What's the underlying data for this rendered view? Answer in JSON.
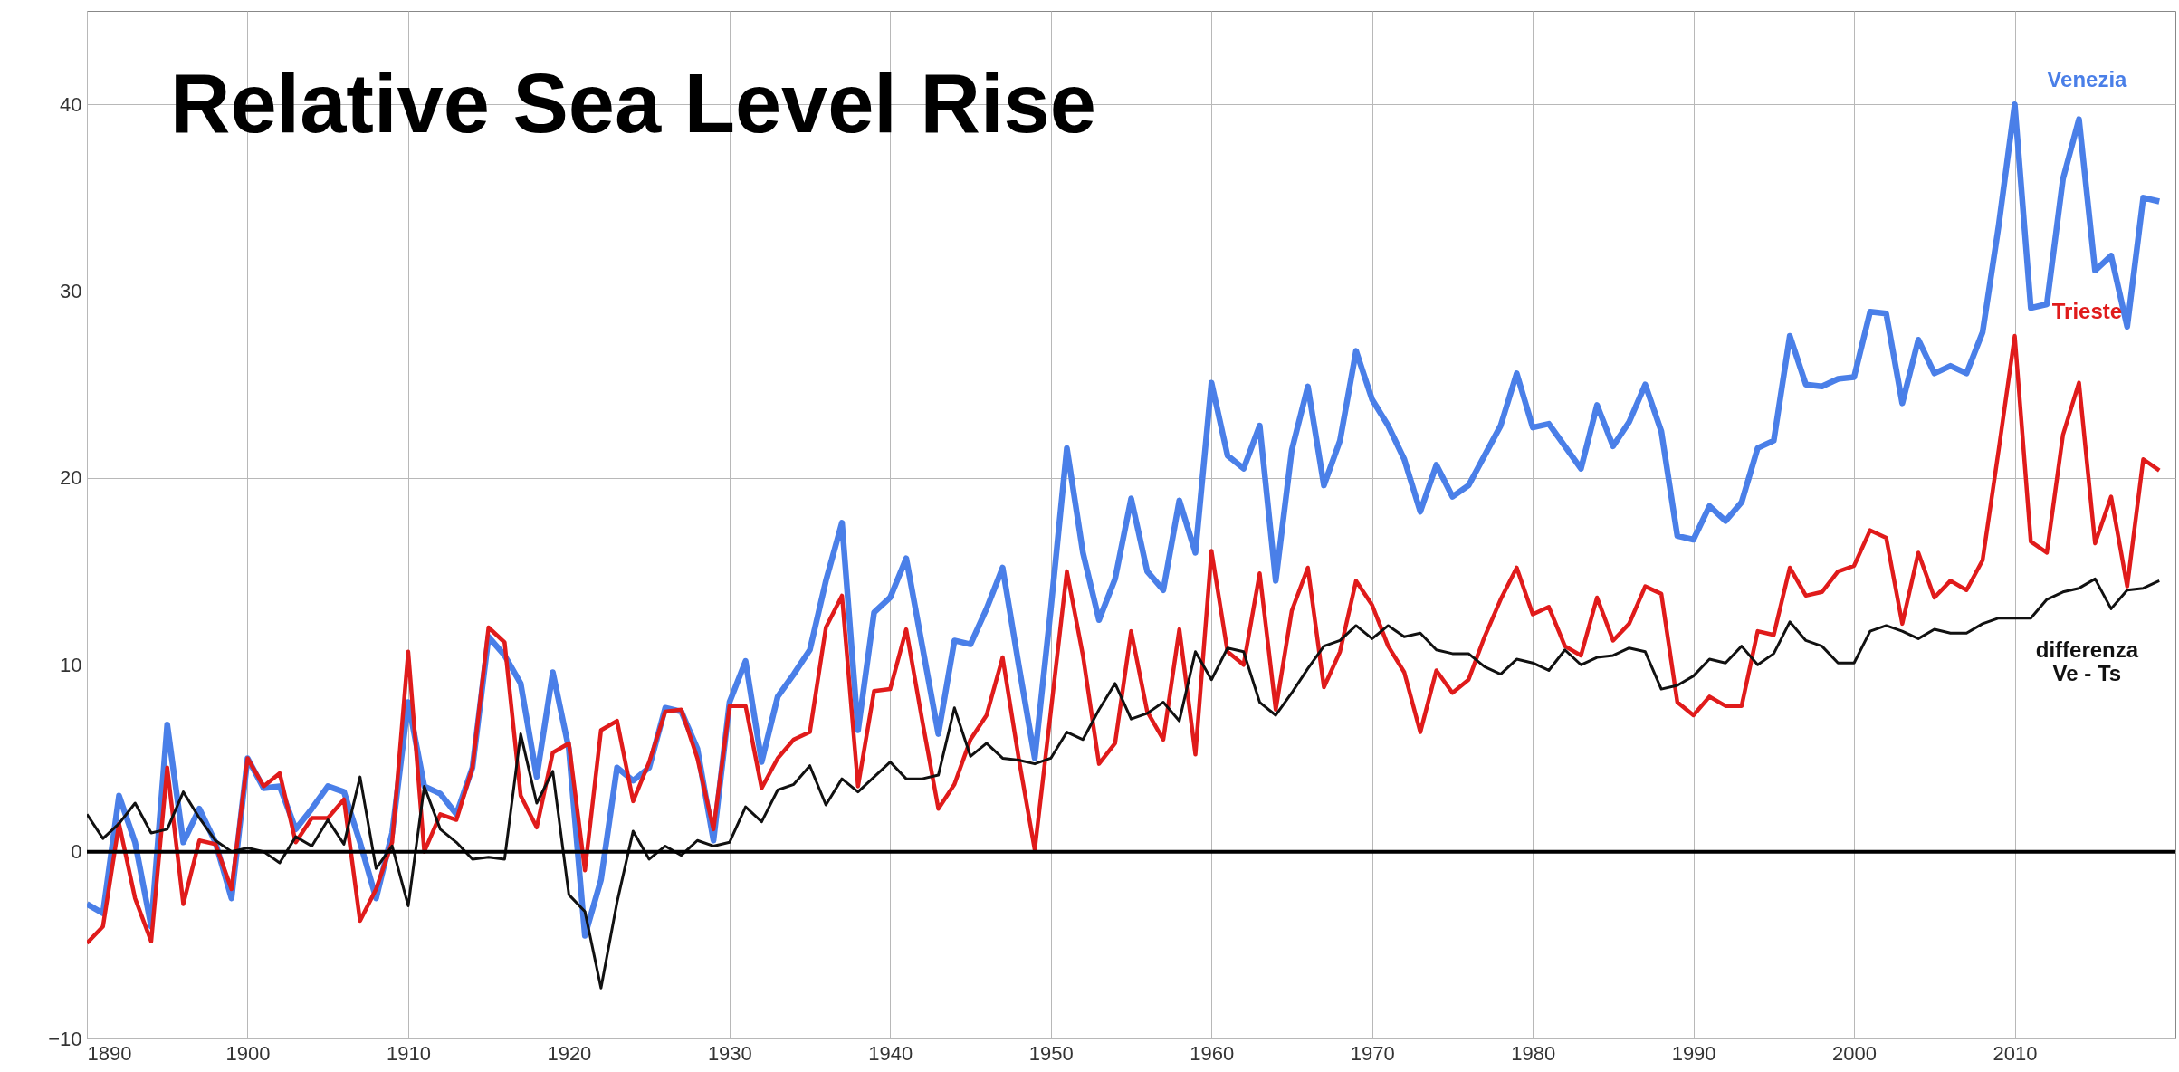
{
  "chart_data": {
    "type": "line",
    "title": "Relative Sea Level Rise",
    "x": [
      1890,
      1891,
      1892,
      1893,
      1894,
      1895,
      1896,
      1897,
      1898,
      1899,
      1900,
      1901,
      1902,
      1903,
      1904,
      1905,
      1906,
      1907,
      1908,
      1909,
      1910,
      1911,
      1912,
      1913,
      1914,
      1915,
      1916,
      1917,
      1918,
      1919,
      1920,
      1921,
      1922,
      1923,
      1924,
      1925,
      1926,
      1927,
      1928,
      1929,
      1930,
      1931,
      1932,
      1933,
      1934,
      1935,
      1936,
      1937,
      1938,
      1939,
      1940,
      1941,
      1942,
      1943,
      1944,
      1945,
      1946,
      1947,
      1948,
      1949,
      1950,
      1951,
      1952,
      1953,
      1954,
      1955,
      1956,
      1957,
      1958,
      1959,
      1960,
      1961,
      1962,
      1963,
      1964,
      1965,
      1966,
      1967,
      1968,
      1969,
      1970,
      1971,
      1972,
      1973,
      1974,
      1975,
      1976,
      1977,
      1978,
      1979,
      1980,
      1981,
      1982,
      1983,
      1984,
      1985,
      1986,
      1987,
      1988,
      1989,
      1990,
      1991,
      1992,
      1993,
      1994,
      1995,
      1996,
      1997,
      1998,
      1999,
      2000,
      2001,
      2002,
      2003,
      2004,
      2005,
      2006,
      2007,
      2008,
      2009,
      2010,
      2011,
      2012,
      2013,
      2014,
      2015,
      2016,
      2017,
      2018,
      2019
    ],
    "series": [
      {
        "name": "Venezia",
        "color": "#4a7fe8",
        "values": [
          -2.8,
          -3.3,
          3,
          0.5,
          -4,
          6.8,
          0.5,
          2.3,
          0.5,
          -2.5,
          5,
          3.4,
          3.5,
          1.2,
          2.3,
          3.5,
          3.2,
          0.5,
          -2.5,
          1,
          8,
          3.5,
          3.1,
          2,
          4.5,
          11.5,
          10.5,
          9,
          4,
          9.6,
          5.5,
          -4.5,
          -1.5,
          4.5,
          3.8,
          4.5,
          7.7,
          7.5,
          5.5,
          0.6,
          8,
          10.2,
          4.8,
          8.3,
          9.5,
          10.8,
          14.5,
          17.6,
          6.5,
          12.8,
          13.6,
          15.7,
          11,
          6.3,
          11.3,
          11.1,
          13,
          15.2,
          10,
          5,
          13,
          21.6,
          16,
          12.4,
          14.6,
          18.9,
          15,
          14,
          18.8,
          16,
          25.1,
          21.2,
          20.5,
          22.8,
          14.5,
          21.5,
          24.9,
          19.6,
          22,
          26.8,
          24.2,
          22.8,
          21,
          18.2,
          20.7,
          19,
          19.6,
          21.2,
          22.8,
          25.6,
          22.7,
          22.9,
          21.7,
          20.5,
          23.9,
          21.7,
          23,
          25,
          22.5,
          16.9,
          16.7,
          18.5,
          17.7,
          18.7,
          21.6,
          22,
          27.6,
          25,
          24.9,
          25.3,
          25.4,
          28.9,
          28.8,
          24,
          27.4,
          25.6,
          26,
          25.6,
          27.8,
          33.5,
          40,
          29.1,
          29.3,
          36,
          39.2,
          31.1,
          31.9,
          28.1,
          35,
          34.8
        ]
      },
      {
        "name": "Trieste",
        "color": "#e01b1b",
        "values": [
          -4.9,
          -4,
          1.5,
          -2.5,
          -4.8,
          4.5,
          -2.8,
          0.6,
          0.4,
          -2,
          5,
          3.5,
          4.2,
          0.5,
          1.8,
          1.8,
          2.8,
          -3.7,
          -2,
          0.5,
          10.7,
          0,
          2,
          1.7,
          4.5,
          12,
          11.2,
          3,
          1.3,
          5.3,
          5.8,
          -1,
          6.5,
          7,
          2.7,
          4.8,
          7.5,
          7.6,
          5,
          1.2,
          7.8,
          7.8,
          3.4,
          5,
          6,
          6.4,
          12,
          13.7,
          3.5,
          8.6,
          8.7,
          11.9,
          7,
          2.3,
          3.6,
          6,
          7.3,
          10.4,
          5,
          0.1,
          7.5,
          15,
          10.5,
          4.7,
          5.8,
          11.8,
          7.5,
          6,
          11.9,
          5.2,
          16.1,
          10.7,
          10,
          14.9,
          7.6,
          12.9,
          15.2,
          8.8,
          10.7,
          14.5,
          13.2,
          11,
          9.6,
          6.4,
          9.7,
          8.5,
          9.2,
          11.5,
          13.5,
          15.2,
          12.7,
          13.1,
          11,
          10.5,
          13.6,
          11.3,
          12.2,
          14.2,
          13.8,
          8,
          7.3,
          8.3,
          7.8,
          7.8,
          11.8,
          11.6,
          15.2,
          13.7,
          13.9,
          15,
          15.3,
          17.2,
          16.8,
          12.2,
          16,
          13.6,
          14.5,
          14,
          15.6,
          21.5,
          27.6,
          16.6,
          16,
          22.3,
          25.1,
          16.5,
          19,
          14.2,
          21,
          20.4
        ]
      },
      {
        "name": "differenza Ve - Ts",
        "color": "#111111",
        "values": [
          2,
          0.7,
          1.5,
          2.6,
          1,
          1.2,
          3.2,
          1.8,
          0.6,
          0,
          0.2,
          0,
          -0.6,
          0.8,
          0.3,
          1.7,
          0.4,
          4,
          -0.9,
          0.3,
          -2.9,
          3.5,
          1.2,
          0.5,
          -0.4,
          -0.3,
          -0.4,
          6.3,
          2.6,
          4.3,
          -2.3,
          -3.2,
          -7.3,
          -2.7,
          1.1,
          -0.4,
          0.3,
          -0.2,
          0.6,
          0.3,
          0.5,
          2.4,
          1.6,
          3.3,
          3.6,
          4.6,
          2.5,
          3.9,
          3.2,
          4,
          4.8,
          3.9,
          3.9,
          4.1,
          7.7,
          5.1,
          5.8,
          5,
          4.9,
          4.7,
          5,
          6.4,
          6,
          7.6,
          9,
          7.1,
          7.4,
          8,
          7,
          10.7,
          9.2,
          10.9,
          10.7,
          8,
          7.3,
          8.5,
          9.8,
          11,
          11.3,
          12.1,
          11.4,
          12.1,
          11.5,
          11.7,
          10.8,
          10.6,
          10.6,
          9.9,
          9.5,
          10.3,
          10.1,
          9.7,
          10.8,
          10,
          10.4,
          10.5,
          10.9,
          10.7,
          8.7,
          8.9,
          9.4,
          10.3,
          10.1,
          11,
          10,
          10.6,
          12.3,
          11.3,
          11,
          10.1,
          10.1,
          11.8,
          12.1,
          11.8,
          11.4,
          11.9,
          11.7,
          11.7,
          12.2,
          12.5,
          12.5,
          12.5,
          13.5,
          13.9,
          14.1,
          14.6,
          13,
          14,
          14.1,
          14.5
        ]
      }
    ],
    "xlim": [
      1890,
      2020
    ],
    "xticks": [
      1890,
      1900,
      1910,
      1920,
      1930,
      1940,
      1950,
      1960,
      1970,
      1980,
      1990,
      2000,
      2010
    ],
    "ylim": [
      -10,
      45
    ],
    "yticks": [
      -10,
      0,
      10,
      20,
      30,
      40
    ],
    "ref_lines": [
      {
        "axis": "y",
        "value": 0,
        "color": "#000000"
      }
    ],
    "grid": true
  }
}
